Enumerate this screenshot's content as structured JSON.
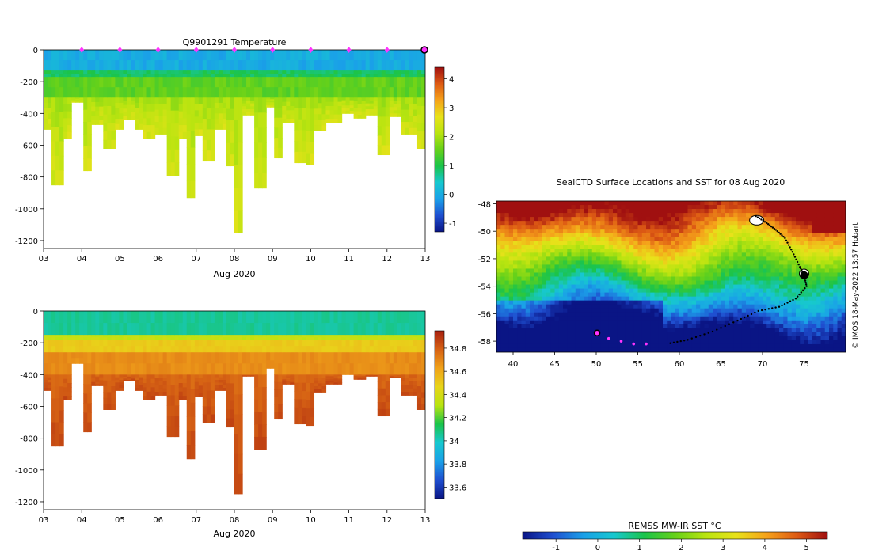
{
  "colors": {
    "temperature": [
      "#0a1585",
      "#1f4fd0",
      "#1aa0e8",
      "#17c8cf",
      "#1bc44a",
      "#66d11a",
      "#b9e410",
      "#e8e21a",
      "#f5a21a",
      "#dd5a14",
      "#a01010"
    ],
    "salinity": [
      "#0a1585",
      "#1f4fd0",
      "#1aa0e8",
      "#17c8cf",
      "#1bc44a",
      "#b9e410",
      "#e8d41a",
      "#f0a21a",
      "#d66214",
      "#a82010"
    ],
    "station_marker": "#ff33ff",
    "track": "#000000"
  },
  "chart_data": [
    {
      "type": "heatmap",
      "id": "temperature_section",
      "title": "Q9901291  Temperature",
      "xlabel": "Aug 2020",
      "ylabel": "",
      "x_ticks": [
        "03",
        "04",
        "05",
        "06",
        "07",
        "08",
        "09",
        "10",
        "11",
        "12",
        "13"
      ],
      "x_range": [
        3,
        13
      ],
      "y_ticks": [
        "0",
        "-200",
        "-400",
        "-600",
        "-800",
        "-1000",
        "-1200"
      ],
      "y_range": [
        -1250,
        0
      ],
      "colorbar_ticks": [
        "4",
        "3",
        "2",
        "1",
        "0",
        "-1"
      ],
      "colorbar_range": [
        -1.3,
        4.4
      ],
      "profile_markers_day": [
        4,
        5,
        6,
        7,
        8,
        9,
        10,
        11,
        12
      ],
      "last_profile_day": 13,
      "profile_depths": [
        [
          3.0,
          -500
        ],
        [
          3.35,
          -850
        ],
        [
          3.6,
          -560
        ],
        [
          3.9,
          -330
        ],
        [
          4.15,
          -760
        ],
        [
          4.4,
          -470
        ],
        [
          4.7,
          -620
        ],
        [
          4.95,
          -500
        ],
        [
          5.2,
          -440
        ],
        [
          5.5,
          -500
        ],
        [
          5.8,
          -560
        ],
        [
          6.1,
          -530
        ],
        [
          6.4,
          -790
        ],
        [
          6.7,
          -560
        ],
        [
          6.9,
          -930
        ],
        [
          7.05,
          -540
        ],
        [
          7.3,
          -700
        ],
        [
          7.6,
          -500
        ],
        [
          7.9,
          -730
        ],
        [
          8.05,
          -1150
        ],
        [
          8.3,
          -410
        ],
        [
          8.7,
          -870
        ],
        [
          8.9,
          -360
        ],
        [
          9.15,
          -680
        ],
        [
          9.4,
          -460
        ],
        [
          9.7,
          -710
        ],
        [
          10.0,
          -720
        ],
        [
          10.25,
          -510
        ],
        [
          10.6,
          -460
        ],
        [
          11.0,
          -400
        ],
        [
          11.3,
          -430
        ],
        [
          11.6,
          -410
        ],
        [
          11.9,
          -660
        ],
        [
          12.2,
          -420
        ],
        [
          12.6,
          -530
        ],
        [
          13.0,
          -620
        ]
      ],
      "layers": [
        {
          "top": 0,
          "bottom": -130,
          "value": 0.0
        },
        {
          "top": -130,
          "bottom": -170,
          "value": 0.9
        },
        {
          "top": -170,
          "bottom": -300,
          "value": 1.5
        },
        {
          "top": -300,
          "bottom": -1250,
          "value": 2.0
        }
      ]
    },
    {
      "type": "heatmap",
      "id": "salinity_section",
      "title": "",
      "xlabel": "Aug 2020",
      "ylabel": "",
      "x_ticks": [
        "03",
        "04",
        "05",
        "06",
        "07",
        "08",
        "09",
        "10",
        "11",
        "12",
        "13"
      ],
      "x_range": [
        3,
        13
      ],
      "y_ticks": [
        "0",
        "-200",
        "-400",
        "-600",
        "-800",
        "-1000",
        "-1200"
      ],
      "y_range": [
        -1250,
        0
      ],
      "colorbar_ticks": [
        "34.8",
        "34.6",
        "34.4",
        "34.2",
        "34",
        "33.8",
        "33.6"
      ],
      "colorbar_range": [
        33.5,
        34.95
      ],
      "layers": [
        {
          "top": 0,
          "bottom": -150,
          "value": 34.05
        },
        {
          "top": -150,
          "bottom": -180,
          "value": 34.35
        },
        {
          "top": -180,
          "bottom": -260,
          "value": 34.5
        },
        {
          "top": -260,
          "bottom": -400,
          "value": 34.68
        },
        {
          "top": -400,
          "bottom": -1250,
          "value": 34.78
        }
      ]
    },
    {
      "type": "map",
      "id": "sst_map",
      "title": "SealCTD Surface Locations and SST for 08 Aug 2020",
      "x_ticks": [
        "40",
        "45",
        "50",
        "55",
        "60",
        "65",
        "70",
        "75"
      ],
      "x_range": [
        38,
        80
      ],
      "y_ticks": [
        "-48",
        "-50",
        "-52",
        "-54",
        "-56",
        "-58"
      ],
      "y_range": [
        -58.8,
        -47.8
      ],
      "colorbar_label": "REMSS MW-IR SST °C",
      "colorbar_ticks": [
        "-1",
        "0",
        "1",
        "2",
        "3",
        "4",
        "5"
      ],
      "colorbar_range": [
        -1.8,
        5.5
      ],
      "side_label": "© IMOS 18-May-2022 13:57 Hobart",
      "track_lonlat": [
        [
          69.2,
          -48.9
        ],
        [
          70.5,
          -49.4
        ],
        [
          71.6,
          -49.9
        ],
        [
          72.7,
          -50.5
        ],
        [
          73.6,
          -51.5
        ],
        [
          74.5,
          -52.6
        ],
        [
          75.0,
          -53.2
        ],
        [
          75.3,
          -54.0
        ],
        [
          74.0,
          -54.9
        ],
        [
          72.0,
          -55.5
        ],
        [
          69.5,
          -55.8
        ],
        [
          67.0,
          -56.5
        ],
        [
          64.0,
          -57.3
        ],
        [
          61.0,
          -57.9
        ],
        [
          58.5,
          -58.2
        ]
      ],
      "recent_positions_lonlat": [
        [
          50.1,
          -57.4
        ],
        [
          51.5,
          -57.8
        ],
        [
          53.0,
          -58.0
        ],
        [
          54.5,
          -58.2
        ],
        [
          56.0,
          -58.2
        ]
      ],
      "current_position_lonlat": [
        50.1,
        -57.4
      ]
    }
  ]
}
